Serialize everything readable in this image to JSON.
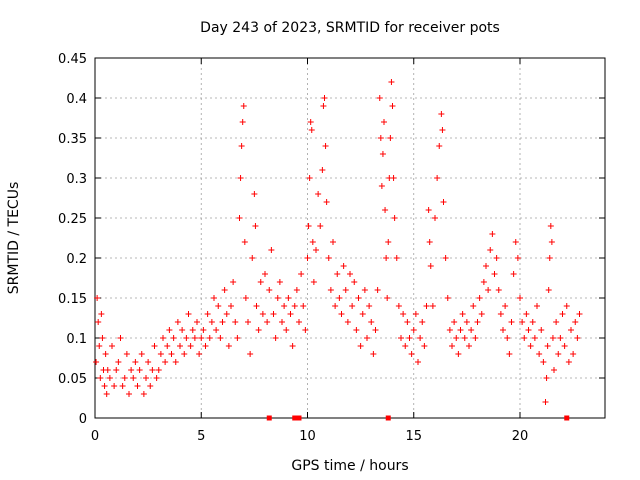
{
  "chart_data": {
    "type": "scatter",
    "title": "Day 243 of 2023, SRMTID for receiver pots",
    "xlabel": "GPS time / hours",
    "ylabel": "SRMTID / TECUs",
    "xlim": [
      0,
      24
    ],
    "ylim": [
      0,
      0.45
    ],
    "grid": true,
    "marker": "+",
    "series_color": "#ff0000",
    "x_ticks": [
      {
        "value": 0,
        "label": "0"
      },
      {
        "value": 5,
        "label": "5"
      },
      {
        "value": 10,
        "label": "10"
      },
      {
        "value": 15,
        "label": "15"
      },
      {
        "value": 20,
        "label": "20"
      }
    ],
    "y_ticks": [
      {
        "value": 0,
        "label": "0"
      },
      {
        "value": 0.05,
        "label": "0.05"
      },
      {
        "value": 0.1,
        "label": "0.1"
      },
      {
        "value": 0.15,
        "label": "0.15"
      },
      {
        "value": 0.2,
        "label": "0.2"
      },
      {
        "value": 0.25,
        "label": "0.25"
      },
      {
        "value": 0.3,
        "label": "0.3"
      },
      {
        "value": 0.35,
        "label": "0.35"
      },
      {
        "value": 0.4,
        "label": "0.4"
      },
      {
        "value": 0.45,
        "label": "0.45"
      }
    ],
    "baseline_markers": [
      {
        "x": 8.2,
        "y": 0
      },
      {
        "x": 9.4,
        "y": 0
      },
      {
        "x": 9.6,
        "y": 0
      },
      {
        "x": 13.8,
        "y": 0
      },
      {
        "x": 22.2,
        "y": 0
      }
    ],
    "series": [
      {
        "name": "SRMTID",
        "points": [
          [
            0.05,
            0.07
          ],
          [
            0.1,
            0.15
          ],
          [
            0.15,
            0.12
          ],
          [
            0.2,
            0.09
          ],
          [
            0.25,
            0.05
          ],
          [
            0.3,
            0.13
          ],
          [
            0.35,
            0.1
          ],
          [
            0.4,
            0.06
          ],
          [
            0.45,
            0.04
          ],
          [
            0.5,
            0.08
          ],
          [
            0.55,
            0.03
          ],
          [
            0.6,
            0.06
          ],
          [
            0.7,
            0.05
          ],
          [
            0.8,
            0.09
          ],
          [
            0.9,
            0.04
          ],
          [
            1.0,
            0.06
          ],
          [
            1.1,
            0.07
          ],
          [
            1.2,
            0.1
          ],
          [
            1.3,
            0.04
          ],
          [
            1.4,
            0.05
          ],
          [
            1.5,
            0.08
          ],
          [
            1.6,
            0.03
          ],
          [
            1.7,
            0.06
          ],
          [
            1.8,
            0.05
          ],
          [
            1.9,
            0.07
          ],
          [
            2.0,
            0.04
          ],
          [
            2.1,
            0.06
          ],
          [
            2.2,
            0.08
          ],
          [
            2.3,
            0.03
          ],
          [
            2.4,
            0.05
          ],
          [
            2.5,
            0.07
          ],
          [
            2.6,
            0.04
          ],
          [
            2.7,
            0.06
          ],
          [
            2.8,
            0.09
          ],
          [
            2.9,
            0.05
          ],
          [
            3.0,
            0.06
          ],
          [
            3.1,
            0.08
          ],
          [
            3.2,
            0.1
          ],
          [
            3.3,
            0.07
          ],
          [
            3.4,
            0.09
          ],
          [
            3.5,
            0.11
          ],
          [
            3.6,
            0.08
          ],
          [
            3.7,
            0.1
          ],
          [
            3.8,
            0.07
          ],
          [
            3.9,
            0.12
          ],
          [
            4.0,
            0.09
          ],
          [
            4.1,
            0.11
          ],
          [
            4.2,
            0.08
          ],
          [
            4.3,
            0.1
          ],
          [
            4.4,
            0.13
          ],
          [
            4.5,
            0.09
          ],
          [
            4.6,
            0.11
          ],
          [
            4.7,
            0.1
          ],
          [
            4.8,
            0.12
          ],
          [
            4.9,
            0.08
          ],
          [
            5.0,
            0.1
          ],
          [
            5.1,
            0.11
          ],
          [
            5.2,
            0.09
          ],
          [
            5.3,
            0.13
          ],
          [
            5.4,
            0.1
          ],
          [
            5.5,
            0.12
          ],
          [
            5.6,
            0.15
          ],
          [
            5.7,
            0.11
          ],
          [
            5.8,
            0.14
          ],
          [
            5.9,
            0.1
          ],
          [
            6.0,
            0.12
          ],
          [
            6.1,
            0.16
          ],
          [
            6.2,
            0.13
          ],
          [
            6.3,
            0.09
          ],
          [
            6.4,
            0.14
          ],
          [
            6.5,
            0.17
          ],
          [
            6.6,
            0.12
          ],
          [
            6.7,
            0.1
          ],
          [
            6.8,
            0.25
          ],
          [
            6.85,
            0.3
          ],
          [
            6.9,
            0.34
          ],
          [
            6.95,
            0.37
          ],
          [
            7.0,
            0.39
          ],
          [
            7.05,
            0.22
          ],
          [
            7.1,
            0.15
          ],
          [
            7.2,
            0.12
          ],
          [
            7.3,
            0.08
          ],
          [
            7.4,
            0.2
          ],
          [
            7.5,
            0.28
          ],
          [
            7.55,
            0.24
          ],
          [
            7.6,
            0.14
          ],
          [
            7.7,
            0.11
          ],
          [
            7.8,
            0.17
          ],
          [
            7.9,
            0.13
          ],
          [
            8.0,
            0.18
          ],
          [
            8.1,
            0.12
          ],
          [
            8.2,
            0.16
          ],
          [
            8.3,
            0.21
          ],
          [
            8.4,
            0.13
          ],
          [
            8.5,
            0.1
          ],
          [
            8.6,
            0.15
          ],
          [
            8.7,
            0.17
          ],
          [
            8.8,
            0.12
          ],
          [
            8.9,
            0.14
          ],
          [
            9.0,
            0.11
          ],
          [
            9.1,
            0.15
          ],
          [
            9.2,
            0.13
          ],
          [
            9.3,
            0.09
          ],
          [
            9.4,
            0.14
          ],
          [
            9.5,
            0.16
          ],
          [
            9.6,
            0.12
          ],
          [
            9.7,
            0.18
          ],
          [
            9.8,
            0.14
          ],
          [
            9.9,
            0.11
          ],
          [
            10.0,
            0.2
          ],
          [
            10.05,
            0.24
          ],
          [
            10.1,
            0.3
          ],
          [
            10.15,
            0.37
          ],
          [
            10.2,
            0.36
          ],
          [
            10.25,
            0.22
          ],
          [
            10.3,
            0.17
          ],
          [
            10.4,
            0.21
          ],
          [
            10.5,
            0.28
          ],
          [
            10.6,
            0.24
          ],
          [
            10.7,
            0.31
          ],
          [
            10.75,
            0.39
          ],
          [
            10.8,
            0.4
          ],
          [
            10.85,
            0.34
          ],
          [
            10.9,
            0.27
          ],
          [
            11.0,
            0.2
          ],
          [
            11.1,
            0.16
          ],
          [
            11.2,
            0.22
          ],
          [
            11.3,
            0.14
          ],
          [
            11.4,
            0.18
          ],
          [
            11.5,
            0.15
          ],
          [
            11.6,
            0.13
          ],
          [
            11.7,
            0.19
          ],
          [
            11.8,
            0.16
          ],
          [
            11.9,
            0.12
          ],
          [
            12.0,
            0.18
          ],
          [
            12.1,
            0.14
          ],
          [
            12.2,
            0.17
          ],
          [
            12.3,
            0.11
          ],
          [
            12.4,
            0.15
          ],
          [
            12.5,
            0.09
          ],
          [
            12.6,
            0.13
          ],
          [
            12.7,
            0.16
          ],
          [
            12.8,
            0.1
          ],
          [
            12.9,
            0.14
          ],
          [
            13.0,
            0.12
          ],
          [
            13.1,
            0.08
          ],
          [
            13.2,
            0.11
          ],
          [
            13.3,
            0.16
          ],
          [
            13.4,
            0.4
          ],
          [
            13.45,
            0.35
          ],
          [
            13.5,
            0.29
          ],
          [
            13.55,
            0.33
          ],
          [
            13.6,
            0.37
          ],
          [
            13.65,
            0.26
          ],
          [
            13.7,
            0.2
          ],
          [
            13.75,
            0.15
          ],
          [
            13.8,
            0.22
          ],
          [
            13.85,
            0.3
          ],
          [
            13.9,
            0.35
          ],
          [
            13.95,
            0.42
          ],
          [
            14.0,
            0.39
          ],
          [
            14.05,
            0.3
          ],
          [
            14.1,
            0.25
          ],
          [
            14.2,
            0.2
          ],
          [
            14.3,
            0.14
          ],
          [
            14.4,
            0.1
          ],
          [
            14.5,
            0.13
          ],
          [
            14.6,
            0.09
          ],
          [
            14.7,
            0.12
          ],
          [
            14.8,
            0.1
          ],
          [
            14.9,
            0.08
          ],
          [
            15.0,
            0.11
          ],
          [
            15.1,
            0.13
          ],
          [
            15.2,
            0.07
          ],
          [
            15.3,
            0.1
          ],
          [
            15.4,
            0.12
          ],
          [
            15.5,
            0.09
          ],
          [
            15.6,
            0.14
          ],
          [
            15.7,
            0.26
          ],
          [
            15.75,
            0.22
          ],
          [
            15.8,
            0.19
          ],
          [
            15.9,
            0.14
          ],
          [
            16.0,
            0.25
          ],
          [
            16.1,
            0.3
          ],
          [
            16.2,
            0.34
          ],
          [
            16.3,
            0.38
          ],
          [
            16.35,
            0.36
          ],
          [
            16.4,
            0.27
          ],
          [
            16.5,
            0.2
          ],
          [
            16.6,
            0.15
          ],
          [
            16.7,
            0.11
          ],
          [
            16.8,
            0.09
          ],
          [
            16.9,
            0.12
          ],
          [
            17.0,
            0.1
          ],
          [
            17.1,
            0.08
          ],
          [
            17.2,
            0.11
          ],
          [
            17.3,
            0.13
          ],
          [
            17.4,
            0.1
          ],
          [
            17.5,
            0.12
          ],
          [
            17.6,
            0.09
          ],
          [
            17.7,
            0.11
          ],
          [
            17.8,
            0.14
          ],
          [
            17.9,
            0.1
          ],
          [
            18.0,
            0.12
          ],
          [
            18.1,
            0.15
          ],
          [
            18.2,
            0.13
          ],
          [
            18.3,
            0.17
          ],
          [
            18.4,
            0.19
          ],
          [
            18.5,
            0.16
          ],
          [
            18.6,
            0.21
          ],
          [
            18.7,
            0.23
          ],
          [
            18.8,
            0.18
          ],
          [
            18.9,
            0.2
          ],
          [
            19.0,
            0.16
          ],
          [
            19.1,
            0.13
          ],
          [
            19.2,
            0.11
          ],
          [
            19.3,
            0.14
          ],
          [
            19.4,
            0.1
          ],
          [
            19.5,
            0.08
          ],
          [
            19.6,
            0.12
          ],
          [
            19.7,
            0.18
          ],
          [
            19.8,
            0.22
          ],
          [
            19.9,
            0.2
          ],
          [
            20.0,
            0.15
          ],
          [
            20.1,
            0.12
          ],
          [
            20.2,
            0.1
          ],
          [
            20.3,
            0.13
          ],
          [
            20.4,
            0.11
          ],
          [
            20.5,
            0.09
          ],
          [
            20.6,
            0.12
          ],
          [
            20.7,
            0.1
          ],
          [
            20.8,
            0.14
          ],
          [
            20.9,
            0.08
          ],
          [
            21.0,
            0.11
          ],
          [
            21.1,
            0.07
          ],
          [
            21.2,
            0.02
          ],
          [
            21.25,
            0.05
          ],
          [
            21.3,
            0.09
          ],
          [
            21.35,
            0.16
          ],
          [
            21.4,
            0.2
          ],
          [
            21.45,
            0.24
          ],
          [
            21.5,
            0.22
          ],
          [
            21.55,
            0.1
          ],
          [
            21.6,
            0.06
          ],
          [
            21.7,
            0.12
          ],
          [
            21.8,
            0.08
          ],
          [
            21.9,
            0.1
          ],
          [
            22.0,
            0.13
          ],
          [
            22.1,
            0.09
          ],
          [
            22.2,
            0.14
          ],
          [
            22.3,
            0.07
          ],
          [
            22.4,
            0.11
          ],
          [
            22.5,
            0.08
          ],
          [
            22.6,
            0.12
          ],
          [
            22.7,
            0.1
          ],
          [
            22.8,
            0.13
          ]
        ]
      }
    ]
  }
}
